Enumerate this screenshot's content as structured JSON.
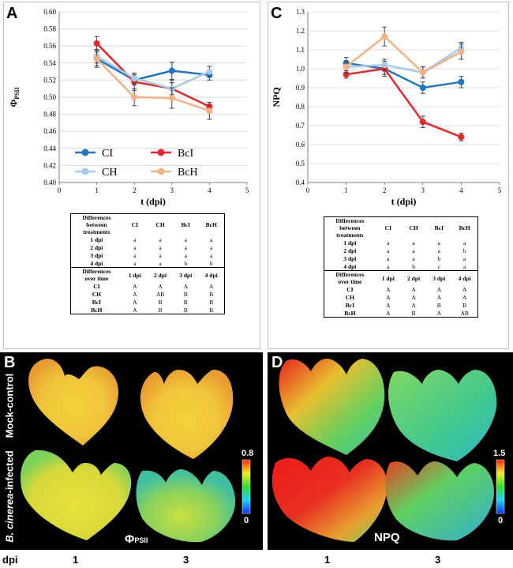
{
  "panel_letters": {
    "a": "A",
    "b": "B",
    "c": "C",
    "d": "D"
  },
  "chart_data": [
    {
      "type": "line",
      "panel": "A",
      "ylabel": "ΦPSII",
      "ylabel_main": "Φ",
      "ylabel_sub": "PSII",
      "xlabel": "t (dpi)",
      "xlim": [
        0,
        5
      ],
      "ylim": [
        0.4,
        0.6
      ],
      "xticks": [
        "0",
        "1",
        "2",
        "3",
        "4",
        "5"
      ],
      "yticks": [
        "0.40",
        "0.42",
        "0.44",
        "0.46",
        "0.48",
        "0.50",
        "0.52",
        "0.54",
        "0.56",
        "0.58",
        "0.60"
      ],
      "grid": "horizontal",
      "legend": "bottom",
      "series": [
        {
          "name": "CI",
          "color": "#1f77c4",
          "x": [
            1,
            2,
            3,
            4
          ],
          "y": [
            0.545,
            0.52,
            0.531,
            0.526
          ],
          "err": [
            0.008,
            0.006,
            0.01,
            0.006
          ]
        },
        {
          "name": "BcI",
          "color": "#e8262a",
          "x": [
            1,
            2,
            3,
            4
          ],
          "y": [
            0.563,
            0.518,
            0.51,
            0.489
          ],
          "err": [
            0.008,
            0.01,
            0.01,
            0.005
          ]
        },
        {
          "name": "CH",
          "color": "#a6cbe8",
          "x": [
            1,
            2,
            3,
            4
          ],
          "y": [
            0.548,
            0.522,
            0.51,
            0.53
          ],
          "err": [
            0.008,
            0.006,
            0.007,
            0.006
          ]
        },
        {
          "name": "BcH",
          "color": "#f4b183",
          "x": [
            1,
            2,
            3,
            4
          ],
          "y": [
            0.545,
            0.5,
            0.499,
            0.484
          ],
          "err": [
            0.01,
            0.01,
            0.012,
            0.01
          ]
        }
      ]
    },
    {
      "type": "line",
      "panel": "C",
      "ylabel": "NPQ",
      "xlabel": "t (dpi)",
      "xlim": [
        0,
        5
      ],
      "ylim": [
        0.4,
        1.3
      ],
      "xticks": [
        "0",
        "1",
        "2",
        "3",
        "4",
        "5"
      ],
      "yticks": [
        "0.4",
        "0.5",
        "0.6",
        "0.7",
        "0.8",
        "0.9",
        "1.0",
        "1.1",
        "1.2",
        "1.3"
      ],
      "grid": "horizontal",
      "legend": "none",
      "series": [
        {
          "name": "CI",
          "color": "#1f77c4",
          "x": [
            1,
            2,
            3,
            4
          ],
          "y": [
            1.03,
            1.0,
            0.9,
            0.93
          ],
          "err": [
            0.03,
            0.03,
            0.03,
            0.03
          ]
        },
        {
          "name": "BcI",
          "color": "#e8262a",
          "x": [
            1,
            2,
            3,
            4
          ],
          "y": [
            0.97,
            1.0,
            0.72,
            0.64
          ],
          "err": [
            0.02,
            0.04,
            0.03,
            0.02
          ]
        },
        {
          "name": "CH",
          "color": "#a6cbe8",
          "x": [
            1,
            2,
            3,
            4
          ],
          "y": [
            1.01,
            1.02,
            0.98,
            1.11
          ],
          "err": [
            0.03,
            0.03,
            0.03,
            0.03
          ]
        },
        {
          "name": "BcH",
          "color": "#f4b183",
          "x": [
            1,
            2,
            3,
            4
          ],
          "y": [
            1.01,
            1.17,
            0.98,
            1.09
          ],
          "err": [
            0.03,
            0.05,
            0.03,
            0.04
          ]
        }
      ]
    }
  ],
  "tables": [
    {
      "panel": "A",
      "head1": [
        "Differences",
        "between",
        "treatments"
      ],
      "cols1": [
        "CI",
        "CH",
        "BcI",
        "BcH"
      ],
      "rows1": [
        [
          "1 dpi",
          "a",
          "a",
          "a",
          "a"
        ],
        [
          "2 dpi",
          "a",
          "a",
          "a",
          "a"
        ],
        [
          "3 dpi",
          "a",
          "a",
          "a",
          "a"
        ],
        [
          "4 dpi",
          "a",
          "a",
          "b",
          "b"
        ]
      ],
      "head2": [
        "Differences",
        "over time"
      ],
      "cols2": [
        "1 dpi",
        "2 dpi",
        "3 dpi",
        "4 dpi"
      ],
      "rows2": [
        [
          "CI",
          "A",
          "A",
          "A",
          "A"
        ],
        [
          "CH",
          "A",
          "AB",
          "B",
          "B"
        ],
        [
          "BcI",
          "A",
          "B",
          "B",
          "B"
        ],
        [
          "BcH",
          "A",
          "B",
          "B",
          "B"
        ]
      ]
    },
    {
      "panel": "C",
      "head1": [
        "Differences",
        "between",
        "treatments"
      ],
      "cols1": [
        "CI",
        "CH",
        "BcI",
        "BcH"
      ],
      "rows1": [
        [
          "1 dpi",
          "a",
          "a",
          "a",
          "a"
        ],
        [
          "2 dpi",
          "a",
          "a",
          "a",
          "b"
        ],
        [
          "3 dpi",
          "a",
          "a",
          "b",
          "a"
        ],
        [
          "4 dpi",
          "a",
          "b",
          "c",
          "a"
        ]
      ],
      "head2": [
        "Differences",
        "over time"
      ],
      "cols2": [
        "1 dpi",
        "2 dpi",
        "3 dpi",
        "4 dpi"
      ],
      "rows2": [
        [
          "CI",
          "A",
          "A",
          "A",
          "A"
        ],
        [
          "CH",
          "A",
          "A",
          "A",
          "A"
        ],
        [
          "BcI",
          "A",
          "A",
          "B",
          "B"
        ],
        [
          "BcH",
          "A",
          "B",
          "A",
          "AB"
        ]
      ]
    }
  ],
  "images": {
    "row_label_top": "Mock-control",
    "row_label_bottom_italic": "B. cinerea",
    "row_label_bottom_rest": "-infected",
    "left_param_main": "Φ",
    "left_param_sub": "PSII",
    "left_scale_max": "0.8",
    "left_scale_min": "0",
    "right_param": "NPQ",
    "right_scale_max": "1.5",
    "right_scale_min": "0",
    "dpi_label": "dpi",
    "dpi_values": [
      "1",
      "3",
      "1",
      "3"
    ]
  }
}
